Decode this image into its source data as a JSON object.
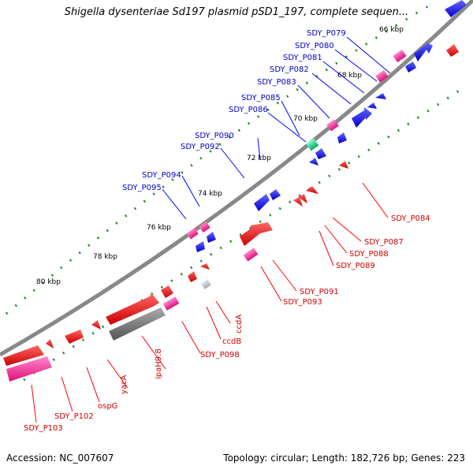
{
  "title": "Shigella dysenteriae Sd197 plasmid pSD1_197, complete sequen...",
  "footer": {
    "accession": "Accession: NC_007607",
    "summary": "Topology: circular; Length: 182,726 bp; Genes: 223"
  },
  "colors": {
    "forward_gene": "#0000ee",
    "reverse_gene": "#ee0000",
    "pink_gene": "#ff3399",
    "green_gene": "#00cc88",
    "gray_gene": "#777777",
    "tick": "#228822",
    "backbone": "#888888"
  },
  "map": {
    "kbp_labels": [
      "66 kbp",
      "68 kbp",
      "70 kbp",
      "72 kbp",
      "74 kbp",
      "76 kbp",
      "78 kbp",
      "80 kbp"
    ],
    "outer_gene_labels": [
      "SDY_P079",
      "SDY_P080",
      "SDY_P081",
      "SDY_P082",
      "SDY_P083",
      "SDY_P085",
      "SDY_P086",
      "SDY_P090",
      "SDY_P092",
      "SDY_P094",
      "SDY_P095"
    ],
    "inner_gene_labels": [
      "SDY_P084",
      "SDY_P087",
      "SDY_P088",
      "SDY_P089",
      "SDY_P091",
      "SDY_P093",
      "ccdA",
      "ccdB",
      "SDY_P098",
      "ipaH9.8",
      "yacA",
      "ospG",
      "SDY_P102",
      "SDY_P103"
    ]
  }
}
